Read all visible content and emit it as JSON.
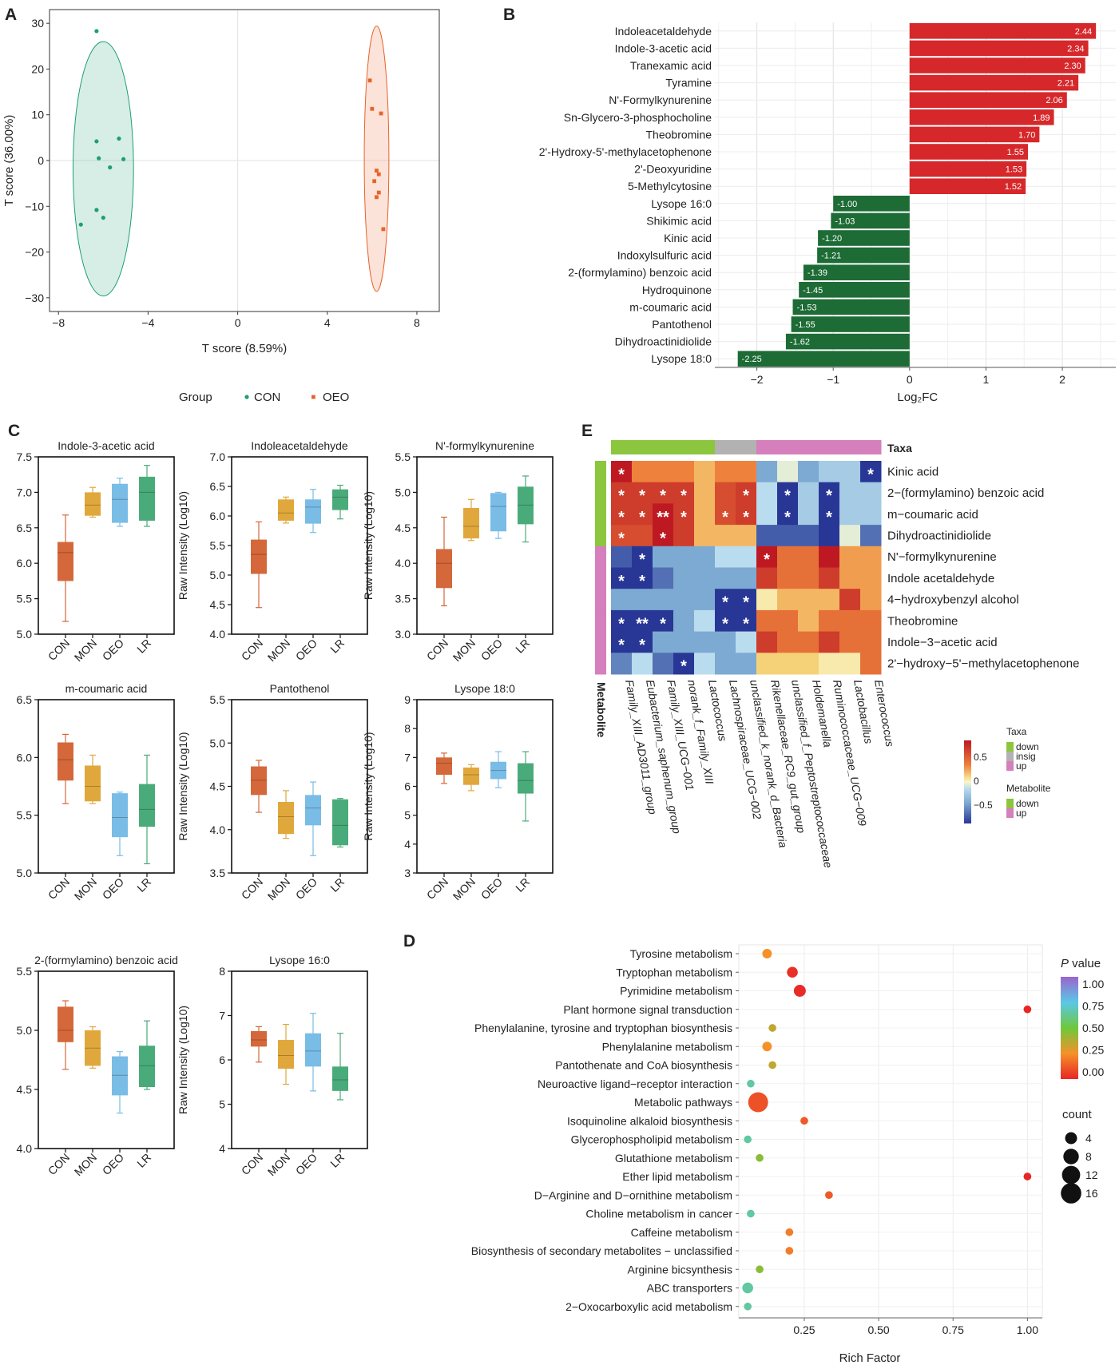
{
  "panel_letters": [
    "A",
    "B",
    "C",
    "D",
    "E"
  ],
  "chart_data": [
    {
      "id": "A",
      "type": "scatter",
      "xlabel": "T score (8.59%)",
      "ylabel": "T score (36.00%)",
      "xlim": [
        -8.4,
        9
      ],
      "ylim": [
        -33,
        33
      ],
      "xticks": [
        -8,
        -4,
        0,
        4,
        8
      ],
      "yticks": [
        -30,
        -20,
        -10,
        0,
        10,
        20,
        30
      ],
      "legend_title": "Group",
      "series": [
        {
          "name": "CON",
          "color": "#1f9e76",
          "marker": "circle",
          "points": [
            [
              -6.3,
              28.3
            ],
            [
              -6.3,
              4.2
            ],
            [
              -6.2,
              0.5
            ],
            [
              -5.7,
              -1.5
            ],
            [
              -5.3,
              4.8
            ],
            [
              -5.1,
              0.3
            ],
            [
              -6.3,
              -10.8
            ],
            [
              -6.0,
              -12.5
            ],
            [
              -7.0,
              -14.0
            ]
          ],
          "ellipse": {
            "cx": -6.0,
            "cy": -1.8,
            "rx": 1.35,
            "ry": 27.8,
            "fill": "rgba(31,158,118,0.18)",
            "stroke": "#1f9e76"
          }
        },
        {
          "name": "OEO",
          "color": "#e8622c",
          "marker": "square",
          "points": [
            [
              5.9,
              17.5
            ],
            [
              6.0,
              11.3
            ],
            [
              6.4,
              10.3
            ],
            [
              6.2,
              -2.2
            ],
            [
              6.3,
              -3.0
            ],
            [
              6.1,
              -4.5
            ],
            [
              6.3,
              -7.0
            ],
            [
              6.2,
              -8.0
            ],
            [
              6.5,
              -15.0
            ]
          ],
          "ellipse": {
            "cx": 6.2,
            "cy": 0.4,
            "rx": 0.55,
            "ry": 29.0,
            "fill": "rgba(232,98,44,0.18)",
            "stroke": "#e8622c"
          }
        }
      ]
    },
    {
      "id": "B",
      "type": "bar",
      "orientation": "horizontal",
      "xlabel": "Log₂FC",
      "xlim": [
        -2.55,
        2.7
      ],
      "xticks": [
        -2,
        -1,
        0,
        1,
        2
      ],
      "colors": {
        "positive": "#d6282b",
        "negative": "#1d6b35"
      },
      "categories": [
        "Indoleacetaldehyde",
        "Indole-3-acetic acid",
        "Tranexamic acid",
        "Tyramine",
        "N'-Formylkynurenine",
        "Sn-Glycero-3-phosphocholine",
        "Theobromine",
        "2'-Hydroxy-5'-methylacetophenone",
        "2'-Deoxyuridine",
        "5-Methylcytosine",
        "Lysope 16:0",
        "Shikimic acid",
        "Kinic acid",
        "Indoxylsulfuric acid",
        "2-(formylamino) benzoic acid",
        "Hydroquinone",
        "m-coumaric acid",
        "Pantothenol",
        "Dihydroactinidiolide",
        "Lysope 18:0"
      ],
      "values": [
        2.44,
        2.34,
        2.3,
        2.21,
        2.06,
        1.89,
        1.7,
        1.55,
        1.53,
        1.52,
        -1.0,
        -1.03,
        -1.2,
        -1.21,
        -1.39,
        -1.45,
        -1.53,
        -1.55,
        -1.62,
        -2.25
      ],
      "value_labels": [
        "2.44",
        "2.34",
        "2.30",
        "2.21",
        "2.06",
        "1.89",
        "1.70",
        "1.55",
        "1.53",
        "1.52",
        "-1.00",
        "-1.03",
        "-1.20",
        "-1.21",
        "-1.39",
        "-1.45",
        "-1.53",
        "-1.55",
        "-1.62",
        "-2.25"
      ]
    },
    {
      "id": "C",
      "type": "box",
      "ylabel": "Raw Intensity (Log10)",
      "categories": [
        "CON",
        "MON",
        "OEO",
        "LR"
      ],
      "colors": [
        "#d4683a",
        "#e0a83c",
        "#79bce6",
        "#4aab7a"
      ],
      "panels": [
        {
          "title": "Indole-3-acetic acid",
          "ylim": [
            5.0,
            7.5
          ],
          "yticks": [
            "5.0",
            "5.5",
            "6.0",
            "6.5",
            "7.0",
            "7.5"
          ],
          "boxes": [
            [
              5.18,
              5.75,
              6.15,
              6.3,
              6.68
            ],
            [
              6.65,
              6.67,
              6.82,
              7.0,
              7.07
            ],
            [
              6.52,
              6.57,
              6.9,
              7.12,
              7.2
            ],
            [
              6.52,
              6.6,
              7.0,
              7.22,
              7.38
            ]
          ]
        },
        {
          "title": "Indoleacetaldehyde",
          "ylim": [
            4.0,
            7.0
          ],
          "yticks": [
            "4.0",
            "4.5",
            "5.0",
            "5.5",
            "6.0",
            "6.5",
            "7.0"
          ],
          "boxes": [
            [
              4.45,
              5.02,
              5.35,
              5.6,
              5.9
            ],
            [
              5.88,
              5.92,
              6.05,
              6.28,
              6.32
            ],
            [
              5.72,
              5.87,
              6.15,
              6.28,
              6.45
            ],
            [
              5.95,
              6.1,
              6.32,
              6.45,
              6.52
            ]
          ]
        },
        {
          "title": "N'-formylkynurenine",
          "ylim": [
            3.0,
            5.5
          ],
          "yticks": [
            "3.0",
            "3.5",
            "4.0",
            "4.5",
            "5.0",
            "5.5"
          ],
          "boxes": [
            [
              3.4,
              3.65,
              4.0,
              4.2,
              4.65
            ],
            [
              4.32,
              4.35,
              4.52,
              4.78,
              4.9
            ],
            [
              4.35,
              4.45,
              4.8,
              4.99,
              5.0
            ],
            [
              4.3,
              4.55,
              4.82,
              5.08,
              5.23
            ]
          ]
        },
        {
          "title": "m-coumaric acid",
          "ylim": [
            5.0,
            6.5
          ],
          "yticks": [
            "5.0",
            "5.5",
            "6.0",
            "6.5"
          ],
          "boxes": [
            [
              5.6,
              5.8,
              5.98,
              6.13,
              6.2
            ],
            [
              5.6,
              5.62,
              5.75,
              5.93,
              6.02
            ],
            [
              5.15,
              5.31,
              5.48,
              5.69,
              5.7
            ],
            [
              5.08,
              5.4,
              5.55,
              5.77,
              6.02
            ]
          ]
        },
        {
          "title": "Pantothenol",
          "ylim": [
            3.5,
            5.5
          ],
          "yticks": [
            "3.5",
            "4.0",
            "4.5",
            "5.0",
            "5.5"
          ],
          "boxes": [
            [
              4.2,
              4.4,
              4.57,
              4.73,
              4.8
            ],
            [
              3.9,
              3.95,
              4.15,
              4.32,
              4.45
            ],
            [
              3.7,
              4.05,
              4.25,
              4.4,
              4.55
            ],
            [
              3.8,
              3.82,
              4.05,
              4.35,
              4.36
            ]
          ]
        },
        {
          "title": "Lysope 18:0",
          "ylim": [
            3,
            9
          ],
          "yticks": [
            "3",
            "4",
            "5",
            "6",
            "7",
            "8",
            "9"
          ],
          "boxes": [
            [
              6.1,
              6.4,
              6.8,
              7.0,
              7.15
            ],
            [
              5.85,
              6.05,
              6.4,
              6.65,
              6.75
            ],
            [
              5.95,
              6.25,
              6.55,
              6.85,
              7.2
            ],
            [
              4.8,
              5.75,
              6.2,
              6.8,
              7.2
            ]
          ]
        },
        {
          "title": "2-(formylamino) benzoic acid",
          "ylim": [
            4.0,
            5.5
          ],
          "yticks": [
            "4.0",
            "4.5",
            "5.0",
            "5.5"
          ],
          "boxes": [
            [
              4.67,
              4.9,
              5.0,
              5.2,
              5.25
            ],
            [
              4.68,
              4.7,
              4.85,
              5.0,
              5.03
            ],
            [
              4.3,
              4.45,
              4.62,
              4.78,
              4.82
            ],
            [
              4.5,
              4.52,
              4.7,
              4.87,
              5.08
            ]
          ]
        },
        {
          "title": "Lysope 16:0",
          "ylim": [
            4,
            8
          ],
          "yticks": [
            "4",
            "5",
            "6",
            "7",
            "8"
          ],
          "boxes": [
            [
              5.95,
              6.3,
              6.45,
              6.65,
              6.75
            ],
            [
              5.45,
              5.8,
              6.1,
              6.45,
              6.8
            ],
            [
              5.3,
              5.85,
              6.2,
              6.6,
              7.05
            ],
            [
              5.1,
              5.3,
              5.55,
              5.85,
              6.6
            ]
          ]
        }
      ]
    },
    {
      "id": "D",
      "type": "scatter",
      "subtype": "bubble",
      "xlabel": "Rich Factor",
      "xlim": [
        0.03,
        1.05
      ],
      "xticks": [
        0.25,
        0.5,
        0.75,
        1.0
      ],
      "xtick_labels": [
        "0.25",
        "0.50",
        "0.75",
        "1.00"
      ],
      "pathways": [
        "Tyrosine metabolism",
        "Tryptophan metabolism",
        "Pyrimidine metabolism",
        "Plant hormone signal transduction",
        "Phenylalanine, tyrosine and tryptophan biosynthesis",
        "Phenylalanine metabolism",
        "Pantothenate and CoA biosynthesis",
        "Neuroactive ligand−receptor interaction",
        "Metabolic pathways",
        "Isoquinoline alkaloid biosynthesis",
        "Glycerophospholipid metabolism",
        "Glutathione metabolism",
        "Ether lipid metabolism",
        "D−Arginine and D−ornithine metabolism",
        "Choline metabolism in cancer",
        "Caffeine metabolism",
        "Biosynthesis of secondary metabolites − unclassified",
        "Arginine bicsynthesis",
        "ABC transporters",
        "2−Oxocarboxylic acid metabolism"
      ],
      "rich_factor": [
        0.125,
        0.21,
        0.235,
        1.0,
        0.143,
        0.125,
        0.143,
        0.07,
        0.095,
        0.25,
        0.06,
        0.1,
        1.0,
        0.333,
        0.07,
        0.2,
        0.2,
        0.1,
        0.06,
        0.06
      ],
      "count": [
        2,
        3,
        4,
        1,
        1,
        2,
        1,
        1,
        15,
        1,
        1,
        1,
        1,
        1,
        1,
        1,
        1,
        1,
        3,
        1
      ],
      "p_value": [
        0.25,
        0.02,
        0.01,
        0.0,
        0.35,
        0.25,
        0.35,
        0.65,
        0.1,
        0.12,
        0.65,
        0.45,
        0.0,
        0.12,
        0.65,
        0.2,
        0.2,
        0.45,
        0.65,
        0.65
      ],
      "color_legend_title_italic": "P",
      "color_legend_title_rest": " value",
      "color_ticks": [
        "1.00",
        "0.75",
        "0.50",
        "0.25",
        "0.00"
      ],
      "size_legend_title": "count",
      "size_ticks": [
        "4",
        "8",
        "12",
        "16"
      ]
    },
    {
      "id": "E",
      "type": "heatmap",
      "rows": [
        "Kinic acid",
        "2−(formylamino) benzoic acid",
        "m−coumaric acid",
        "Dihydroactinidiolide",
        "N'−formylkynurenine",
        "Indole acetaldehyde",
        "4−hydroxybenzyl alcohol",
        "Theobromine",
        "Indole−3−acetic acid",
        "2'−hydroxy−5'−methylacetophenone"
      ],
      "row_groups": [
        "down",
        "down",
        "down",
        "down",
        "up",
        "up",
        "up",
        "up",
        "up",
        "up"
      ],
      "cols": [
        "Family_XIII_AD3011_group",
        "Eubacterium_saphenum_group",
        "Family_XIII_UCG−001",
        "norank_f_Family_XIII",
        "Lactococcus",
        "Lachnospiraceae_UCG−002",
        "unclassified_k_norank_d_Bacteria",
        "Rikenellaceae_RC9_gut_group",
        "unclassified_f_Peptostreptococcaceae",
        "Holdemanella",
        "Ruminococcaceae_UCG−009",
        "Lactobacillus",
        "Enterococcus"
      ],
      "col_groups": [
        "down",
        "down",
        "down",
        "down",
        "down",
        "insig",
        "insig",
        "up",
        "up",
        "up",
        "up",
        "up",
        "up"
      ],
      "values": [
        [
          0.6,
          0.3,
          0.3,
          0.3,
          0.2,
          0.3,
          0.3,
          -0.3,
          -0.05,
          -0.3,
          -0.2,
          -0.2,
          -0.6
        ],
        [
          0.5,
          0.5,
          0.5,
          0.5,
          0.2,
          0.45,
          0.5,
          -0.15,
          -0.6,
          -0.2,
          -0.6,
          -0.2,
          -0.2
        ],
        [
          0.5,
          0.5,
          0.6,
          0.5,
          0.2,
          0.45,
          0.5,
          -0.15,
          -0.6,
          -0.2,
          -0.6,
          -0.2,
          -0.2
        ],
        [
          0.45,
          0.45,
          0.6,
          0.5,
          0.2,
          0.2,
          0.2,
          -0.5,
          -0.5,
          -0.5,
          -0.6,
          -0.05,
          -0.45
        ],
        [
          -0.5,
          -0.6,
          -0.3,
          -0.3,
          -0.3,
          -0.15,
          -0.15,
          0.6,
          0.35,
          0.35,
          0.6,
          0.25,
          0.25
        ],
        [
          -0.6,
          -0.6,
          -0.45,
          -0.3,
          -0.3,
          -0.3,
          -0.3,
          0.5,
          0.35,
          0.35,
          0.5,
          0.25,
          0.25
        ],
        [
          -0.3,
          -0.3,
          -0.3,
          -0.3,
          -0.3,
          -0.6,
          -0.6,
          0.05,
          0.2,
          0.2,
          0.2,
          0.5,
          0.25
        ],
        [
          -0.6,
          -0.6,
          -0.6,
          -0.3,
          -0.15,
          -0.6,
          -0.6,
          0.35,
          0.35,
          0.2,
          0.35,
          0.35,
          0.35
        ],
        [
          -0.6,
          -0.6,
          -0.3,
          -0.3,
          -0.3,
          -0.3,
          -0.15,
          0.5,
          0.35,
          0.35,
          0.5,
          0.35,
          0.35
        ],
        [
          -0.4,
          -0.15,
          -0.45,
          -0.6,
          -0.15,
          -0.3,
          -0.3,
          0.15,
          0.15,
          0.15,
          0.05,
          0.05,
          0.35
        ]
      ],
      "stars": [
        [
          "*",
          "",
          "",
          "",
          "",
          "",
          "",
          "",
          "",
          "",
          "",
          "",
          "*"
        ],
        [
          "*",
          "*",
          "*",
          "*",
          "",
          "",
          "*",
          "",
          "*",
          "",
          "*",
          "",
          ""
        ],
        [
          "*",
          "*",
          "**",
          "*",
          "",
          "*",
          "*",
          "",
          "*",
          "",
          "*",
          "",
          ""
        ],
        [
          "*",
          "",
          "*",
          "",
          "",
          "",
          "",
          "",
          "",
          "",
          "",
          "",
          ""
        ],
        [
          "",
          "*",
          "",
          "",
          "",
          "",
          "",
          "*",
          "",
          "",
          "",
          "",
          ""
        ],
        [
          "*",
          "*",
          "",
          "",
          "",
          "",
          "",
          "",
          "",
          "",
          "",
          "",
          ""
        ],
        [
          "",
          "",
          "",
          "",
          "",
          "*",
          "*",
          "",
          "",
          "",
          "",
          "",
          ""
        ],
        [
          "*",
          "**",
          "*",
          "",
          "",
          "*",
          "*",
          "",
          "",
          "",
          "",
          "",
          ""
        ],
        [
          "*",
          "*",
          "",
          "",
          "",
          "",
          "",
          "",
          "",
          "",
          "",
          "",
          ""
        ],
        [
          "",
          "",
          "",
          "*",
          "",
          "",
          "",
          "",
          "",
          "",
          "",
          "",
          ""
        ]
      ],
      "taxa_label": "Taxa",
      "metabolite_label": "Metabolite",
      "group_colors": {
        "down": "#8cc63f",
        "insig": "#b2b2b2",
        "up": "#d57fbd"
      },
      "color_ticks": [
        "0.5",
        "0",
        "−0.5"
      ],
      "legend_taxa_title": "Taxa",
      "legend_taxa_items": [
        "down",
        "insig",
        "up"
      ],
      "legend_metab_title": "Metabolite",
      "legend_metab_items": [
        "down",
        "up"
      ]
    }
  ]
}
